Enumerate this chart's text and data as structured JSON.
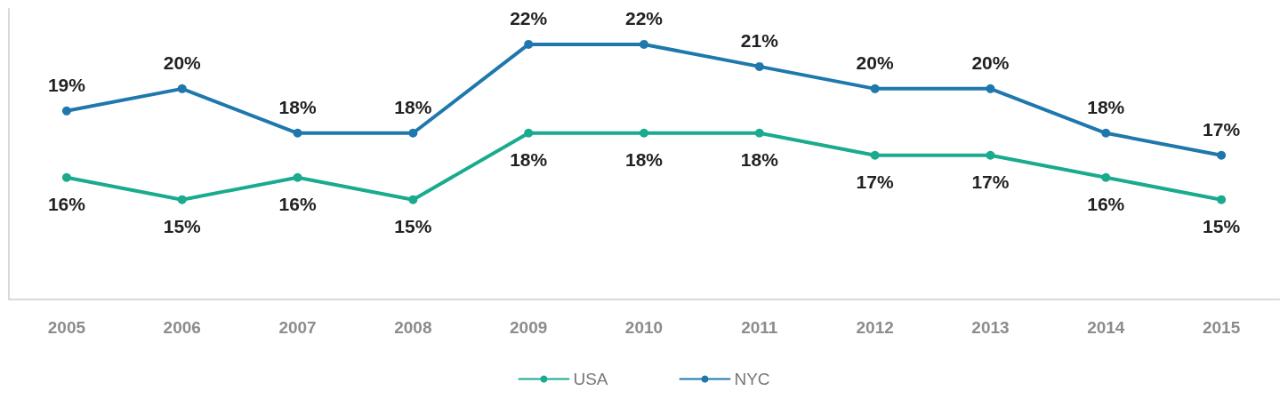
{
  "chart_data": {
    "type": "line",
    "categories": [
      "2005",
      "2006",
      "2007",
      "2008",
      "2009",
      "2010",
      "2011",
      "2012",
      "2013",
      "2014",
      "2015"
    ],
    "series": [
      {
        "name": "USA",
        "color": "#1aab8f",
        "values": [
          16,
          15,
          16,
          15,
          18,
          18,
          18,
          17,
          17,
          16,
          15
        ],
        "value_labels": [
          "16%",
          "15%",
          "16%",
          "15%",
          "18%",
          "18%",
          "18%",
          "17%",
          "17%",
          "16%",
          "15%"
        ]
      },
      {
        "name": "NYC",
        "color": "#1f78ad",
        "values": [
          19,
          20,
          18,
          18,
          22,
          22,
          21,
          20,
          20,
          18,
          17
        ],
        "value_labels": [
          "19%",
          "20%",
          "18%",
          "18%",
          "22%",
          "22%",
          "21%",
          "20%",
          "20%",
          "18%",
          "17%"
        ]
      }
    ],
    "legend": "bottom",
    "grid": false,
    "marker": "circle",
    "line_style": "solid"
  }
}
